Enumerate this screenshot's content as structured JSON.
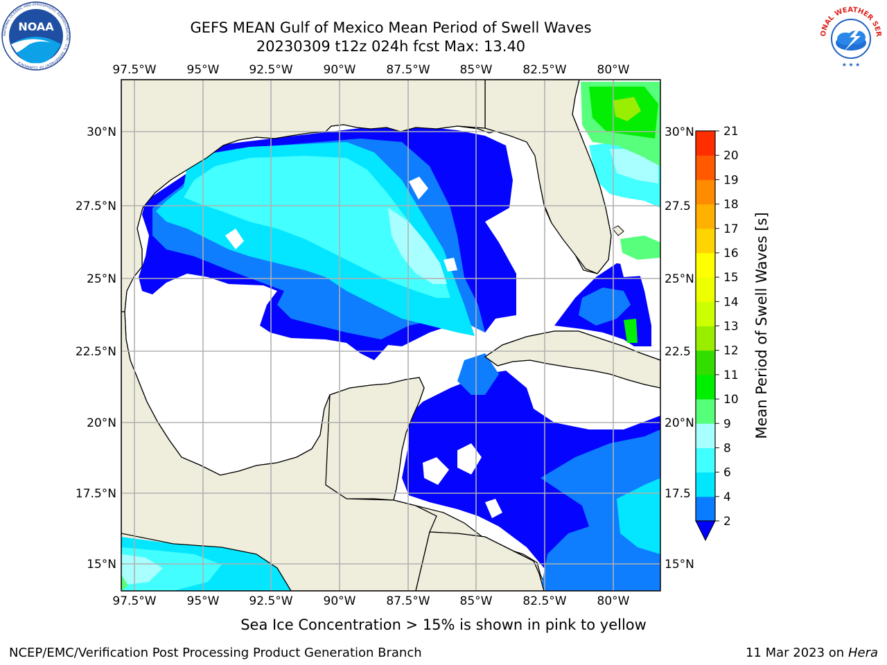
{
  "header": {
    "title_line1": "GEFS MEAN Gulf of Mexico Mean Period of Swell Waves",
    "title_line2": "20230309 t12z 024h fcst   Max: 13.40",
    "left_logo_text": "NOAA",
    "left_logo_ring_text": "NATIONAL OCEANIC AND ATMOSPHERIC ADMINISTRATION · U.S. DEPARTMENT OF COMMERCE",
    "right_logo_ring_text": "NATIONAL WEATHER SERVICE"
  },
  "map": {
    "lon_labels": [
      "97.5°W",
      "95°W",
      "92.5°W",
      "90°W",
      "87.5°W",
      "85°W",
      "82.5°W",
      "80°W"
    ],
    "lat_labels_left": [
      "30°N",
      "27.5°N",
      "25°N",
      "22.5°N",
      "20°N",
      "17.5°N",
      "15°N"
    ],
    "lat_labels_right": [
      "30°N",
      "27.5",
      "25°N",
      "22.5",
      "20°N",
      "17.5",
      "15°N"
    ],
    "land_color": "#efeedd",
    "ocean_color": "#ffffff",
    "grid_color": "#b0b0b0"
  },
  "colorbar": {
    "title": "Mean Period of Swell Waves [s]",
    "tick_labels": [
      "2",
      "4",
      "6",
      "8",
      "9",
      "10",
      "11",
      "12",
      "13",
      "14",
      "15",
      "16",
      "17",
      "18",
      "19",
      "20",
      "21"
    ],
    "colors": [
      "#0a7cff",
      "#00e6ff",
      "#40ffff",
      "#a8ffff",
      "#55ff7a",
      "#00ee00",
      "#33dd00",
      "#99ee00",
      "#ccff00",
      "#eeff00",
      "#ffff00",
      "#ffd400",
      "#ffb000",
      "#ff8c00",
      "#ff5a00",
      "#ff2e00",
      "#ff0000"
    ],
    "extend_color": "#0000ff"
  },
  "footer": {
    "note": "Sea Ice Concentration > 15% is shown in pink to yellow",
    "credit": "NCEP/EMC/Verification Post Processing Product Generation Branch",
    "date": "11 Mar 2023 on",
    "host": "Hera"
  }
}
